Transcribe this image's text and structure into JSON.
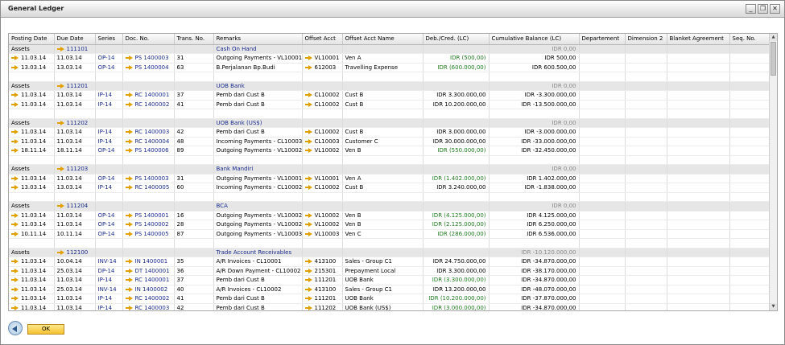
{
  "window": {
    "title": "General Ledger",
    "minimize": "_",
    "restore": "❐",
    "close": "✕"
  },
  "columns": [
    "Posting Date",
    "Due Date",
    "Series",
    "Doc. No.",
    "Trans. No.",
    "Remarks",
    "Offset Acct",
    "Offset Acct Name",
    "Deb./Cred. (LC)",
    "Cumulative Balance (LC)",
    "Departement",
    "Dimension 2",
    "Blanket Agreement",
    "Seq. No."
  ],
  "groups": [
    {
      "label": "Assets",
      "account": "111101",
      "name": "Cash On Hand",
      "balance": "IDR 0,00",
      "rows": [
        [
          "11.03.14",
          "11.03.14",
          "OP-14",
          "PS 1400003",
          "31",
          "Outgoing Payments - VL10001",
          "VL10001",
          "Ven A",
          "IDR (500,00)",
          "IDR 500,00"
        ],
        [
          "13.03.14",
          "13.03.14",
          "OP-14",
          "PS 1400004",
          "63",
          "B.Perjalanan Bp.Budi",
          "612003",
          "Travelling Expense",
          "IDR (600.000,00)",
          "IDR 600.500,00"
        ]
      ]
    },
    {
      "label": "Assets",
      "account": "111201",
      "name": "UOB Bank",
      "balance": "IDR 0,00",
      "rows": [
        [
          "11.03.14",
          "11.03.14",
          "IP-14",
          "RC 1400001",
          "37",
          "Pemb dari Cust B",
          "CL10002",
          "Cust B",
          "IDR  3.300.000,00",
          "IDR -3.300.000,00"
        ],
        [
          "11.03.14",
          "11.03.14",
          "IP-14",
          "RC 1400002",
          "41",
          "Pemb dari Cust B",
          "CL10002",
          "Cust B",
          "IDR  10.200.000,00",
          "IDR -13.500.000,00"
        ]
      ]
    },
    {
      "label": "Assets",
      "account": "111202",
      "name": "UOB Bank (US$)",
      "balance": "IDR 0,00",
      "rows": [
        [
          "11.03.14",
          "11.03.14",
          "IP-14",
          "RC 1400003",
          "42",
          "Pemb dari Cust B",
          "CL10002",
          "Cust B",
          "IDR  3.000.000,00",
          "IDR -3.000.000,00"
        ],
        [
          "11.03.14",
          "11.03.14",
          "IP-14",
          "RC 1400004",
          "48",
          "Incoming Payments - CL10003",
          "CL10003",
          "Customer C",
          "IDR  30.000.000,00",
          "IDR -33.000.000,00"
        ],
        [
          "18.11.14",
          "18.11.14",
          "OP-14",
          "PS 1400006",
          "89",
          "Outgoing Payments - VL10002",
          "VL10002",
          "Ven B",
          "IDR (550.000,00)",
          "IDR -32.450.000,00"
        ]
      ]
    },
    {
      "label": "Assets",
      "account": "111203",
      "name": "Bank Mandiri",
      "balance": "IDR 0,00",
      "rows": [
        [
          "11.03.14",
          "11.03.14",
          "OP-14",
          "PS 1400003",
          "31",
          "Outgoing Payments - VL10001",
          "VL10001",
          "Ven A",
          "IDR (1.402.000,00)",
          "IDR 1.402.000,00"
        ],
        [
          "13.03.14",
          "13.03.14",
          "IP-14",
          "RC 1400005",
          "60",
          "Incoming Payments - CL10002",
          "CL10002",
          "Cust B",
          "IDR  3.240.000,00",
          "IDR -1.838.000,00"
        ]
      ]
    },
    {
      "label": "Assets",
      "account": "111204",
      "name": "BCA",
      "balance": "IDR 0,00",
      "rows": [
        [
          "11.03.14",
          "11.03.14",
          "OP-14",
          "PS 1400001",
          "16",
          "Outgoing Payments - VL10002",
          "VL10002",
          "Ven B",
          "IDR (4.125.000,00)",
          "IDR 4.125.000,00"
        ],
        [
          "11.03.14",
          "11.03.14",
          "OP-14",
          "PS 1400002",
          "28",
          "Outgoing Payments - VL10002",
          "VL10002",
          "Ven B",
          "IDR (2.125.000,00)",
          "IDR 6.250.000,00"
        ],
        [
          "10.11.14",
          "10.11.14",
          "OP-14",
          "PS 1400005",
          "87",
          "Outgoing Payments - VL10003",
          "VL10003",
          "Ven C",
          "IDR (286.000,00)",
          "IDR 6.536.000,00"
        ]
      ]
    },
    {
      "label": "Assets",
      "account": "112100",
      "name": "Trade Account Receivables",
      "balance": "IDR -10.120.000,00",
      "rows": [
        [
          "11.03.14",
          "10.04.14",
          "INV-14",
          "IN 1400001",
          "35",
          "A/R Invoices - CL10001",
          "413100",
          "Sales - Group C1",
          "IDR  24.750.000,00",
          "IDR -34.870.000,00"
        ],
        [
          "11.03.14",
          "25.03.14",
          "DP-14",
          "DT 1400001",
          "36",
          "A/R Down Payment - CL10002",
          "215301",
          "Prepayment Local",
          "IDR  3.300.000,00",
          "IDR -38.170.000,00"
        ],
        [
          "11.03.14",
          "11.03.14",
          "IP-14",
          "RC 1400001",
          "37",
          "Pemb dari Cust B",
          "111201",
          "UOB Bank",
          "IDR (3.300.000,00)",
          "IDR -34.870.000,00"
        ],
        [
          "11.03.14",
          "25.03.14",
          "INV-14",
          "IN 1400002",
          "40",
          "A/R Invoices - CL10002",
          "413100",
          "Sales - Group C1",
          "IDR  13.200.000,00",
          "IDR -48.070.000,00"
        ],
        [
          "11.03.14",
          "11.03.14",
          "IP-14",
          "RC 1400002",
          "41",
          "Pemb dari Cust B",
          "111201",
          "UOB Bank",
          "IDR (10.200.000,00)",
          "IDR -37.870.000,00"
        ],
        [
          "11.03.14",
          "11.03.14",
          "IP-14",
          "RC 1400003",
          "42",
          "Pemb dari Cust B",
          "111202",
          "UOB Bank (US$)",
          "IDR (3.000.000,00)",
          "IDR -34.870.000,00"
        ]
      ]
    }
  ],
  "footer": {
    "ok_label": "OK"
  },
  "colors": {
    "link": "#1a2b8c",
    "credit": "#1d7a1d",
    "arrow": "#e0a000"
  }
}
